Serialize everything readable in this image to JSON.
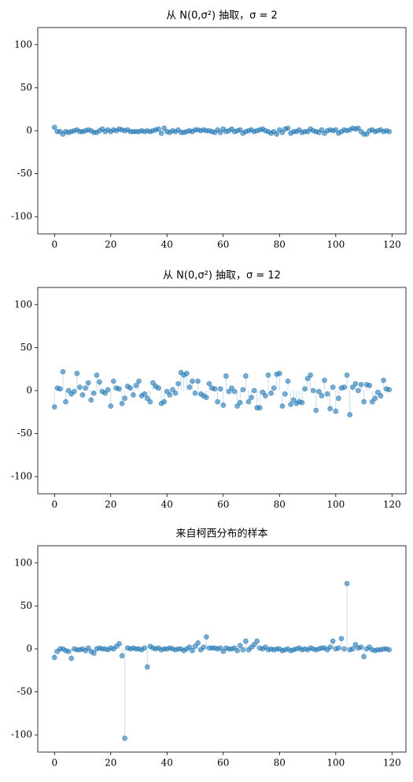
{
  "chart_data": [
    {
      "type": "scatter",
      "title": "从 N(0,σ²) 抽取，σ = 2",
      "color": "#1f77b4",
      "x": [
        0,
        1,
        2,
        3,
        4,
        5,
        6,
        7,
        8,
        9,
        10,
        11,
        12,
        13,
        14,
        15,
        16,
        17,
        18,
        19,
        20,
        21,
        22,
        23,
        24,
        25,
        26,
        27,
        28,
        29,
        30,
        31,
        32,
        33,
        34,
        35,
        36,
        37,
        38,
        39,
        40,
        41,
        42,
        43,
        44,
        45,
        46,
        47,
        48,
        49,
        50,
        51,
        52,
        53,
        54,
        55,
        56,
        57,
        58,
        59,
        60,
        61,
        62,
        63,
        64,
        65,
        66,
        67,
        68,
        69,
        70,
        71,
        72,
        73,
        74,
        75,
        76,
        77,
        78,
        79,
        80,
        81,
        82,
        83,
        84,
        85,
        86,
        87,
        88,
        89,
        90,
        91,
        92,
        93,
        94,
        95,
        96,
        97,
        98,
        99,
        100,
        101,
        102,
        103,
        104,
        105,
        106,
        107,
        108,
        109,
        110,
        111,
        112,
        113,
        114,
        115,
        116,
        117,
        118,
        119
      ],
      "values": [
        4,
        -1,
        -1,
        -4,
        -1,
        -2,
        -1,
        0,
        1,
        -1,
        -1,
        0,
        1,
        0,
        -2,
        -2,
        0,
        2,
        -1,
        1,
        -1,
        1,
        0,
        2,
        1,
        0,
        1,
        -1,
        -1,
        -1,
        -1,
        0,
        -1,
        0,
        -1,
        0,
        1,
        2,
        -3,
        3,
        -1,
        -2,
        0,
        -1,
        1,
        -2,
        -2,
        -1,
        0,
        -1,
        1,
        1,
        0,
        1,
        0,
        0,
        -1,
        -2,
        1,
        -2,
        2,
        -1,
        0,
        2,
        -1,
        0,
        1,
        -3,
        -1,
        0,
        1,
        -1,
        0,
        1,
        2,
        0,
        -1,
        -3,
        -1,
        -4,
        1,
        -2,
        2,
        3,
        -3,
        -1,
        -1,
        1,
        -2,
        -1,
        -1,
        2,
        0,
        -1,
        -2,
        1,
        -3,
        0,
        1,
        0,
        1,
        -3,
        -1,
        1,
        0,
        1,
        3,
        2,
        3,
        -1,
        -4,
        -4,
        0,
        1,
        -1,
        0,
        1,
        -1,
        0,
        -1
      ],
      "xlim": [
        -5.95,
        124.95
      ],
      "ylim": [
        -120,
        120
      ],
      "xticks": [
        0,
        20,
        40,
        60,
        80,
        100,
        120
      ],
      "yticks": [
        -100,
        -50,
        0,
        50,
        100
      ]
    },
    {
      "type": "scatter",
      "title": "从 N(0,σ²) 抽取，σ = 12",
      "color": "#1f77b4",
      "x": [
        0,
        1,
        2,
        3,
        4,
        5,
        6,
        7,
        8,
        9,
        10,
        11,
        12,
        13,
        14,
        15,
        16,
        17,
        18,
        19,
        20,
        21,
        22,
        23,
        24,
        25,
        26,
        27,
        28,
        29,
        30,
        31,
        32,
        33,
        34,
        35,
        36,
        37,
        38,
        39,
        40,
        41,
        42,
        43,
        44,
        45,
        46,
        47,
        48,
        49,
        50,
        51,
        52,
        53,
        54,
        55,
        56,
        57,
        58,
        59,
        60,
        61,
        62,
        63,
        64,
        65,
        66,
        67,
        68,
        69,
        70,
        71,
        72,
        73,
        74,
        75,
        76,
        77,
        78,
        79,
        80,
        81,
        82,
        83,
        84,
        85,
        86,
        87,
        88,
        89,
        90,
        91,
        92,
        93,
        94,
        95,
        96,
        97,
        98,
        99,
        100,
        101,
        102,
        103,
        104,
        105,
        106,
        107,
        108,
        109,
        110,
        111,
        112,
        113,
        114,
        115,
        116,
        117,
        118,
        119
      ],
      "values": [
        -19,
        3,
        2,
        22,
        -13,
        0,
        -4,
        -1,
        20,
        4,
        -5,
        3,
        9,
        -11,
        -3,
        18,
        10,
        -1,
        -3,
        1,
        -18,
        11,
        3,
        2,
        -15,
        -9,
        5,
        3,
        -5,
        6,
        11,
        -6,
        -4,
        -9,
        -13,
        9,
        5,
        3,
        -15,
        -13,
        -1,
        -5,
        1,
        -3,
        8,
        21,
        18,
        20,
        4,
        11,
        -3,
        11,
        -4,
        -6,
        -8,
        8,
        3,
        2,
        -13,
        2,
        -17,
        17,
        -1,
        3,
        -1,
        -18,
        -14,
        1,
        17,
        -13,
        -8,
        0,
        -20,
        -20,
        -2,
        -6,
        18,
        -3,
        3,
        19,
        20,
        -18,
        -4,
        11,
        -16,
        -11,
        -15,
        -13,
        -14,
        2,
        14,
        18,
        0,
        -23,
        -1,
        -6,
        12,
        -4,
        -21,
        4,
        -24,
        -9,
        3,
        4,
        18,
        -28,
        4,
        8,
        0,
        7,
        -13,
        7,
        6,
        -13,
        -9,
        -2,
        -6,
        12,
        2,
        1
      ],
      "xlim": [
        -5.95,
        124.95
      ],
      "ylim": [
        -120,
        120
      ],
      "xticks": [
        0,
        20,
        40,
        60,
        80,
        100,
        120
      ],
      "yticks": [
        -100,
        -50,
        0,
        50,
        100
      ]
    },
    {
      "type": "scatter",
      "title": "来自柯西分布的样本",
      "color": "#1f77b4",
      "x": [
        0,
        1,
        2,
        3,
        4,
        5,
        6,
        7,
        8,
        9,
        10,
        11,
        12,
        13,
        14,
        15,
        16,
        17,
        18,
        19,
        20,
        21,
        22,
        23,
        24,
        25,
        26,
        27,
        28,
        29,
        30,
        31,
        32,
        33,
        34,
        35,
        36,
        37,
        38,
        39,
        40,
        41,
        42,
        43,
        44,
        45,
        46,
        47,
        48,
        49,
        50,
        51,
        52,
        53,
        54,
        55,
        56,
        57,
        58,
        59,
        60,
        61,
        62,
        63,
        64,
        65,
        66,
        67,
        68,
        69,
        70,
        71,
        72,
        73,
        74,
        75,
        76,
        77,
        78,
        79,
        80,
        81,
        82,
        83,
        84,
        85,
        86,
        87,
        88,
        89,
        90,
        91,
        92,
        93,
        94,
        95,
        96,
        97,
        98,
        99,
        100,
        101,
        102,
        103,
        104,
        105,
        106,
        107,
        108,
        109,
        110,
        111,
        112,
        113,
        114,
        115,
        116,
        117,
        118,
        119
      ],
      "values": [
        -10,
        -3,
        0,
        0,
        -2,
        -3,
        -11,
        0,
        -1,
        -1,
        0,
        -2,
        1,
        -3,
        -5,
        0,
        1,
        0,
        0,
        -1,
        1,
        0,
        3,
        6,
        -8,
        -104,
        1,
        0,
        1,
        0,
        0,
        -1,
        1,
        -21,
        3,
        1,
        0,
        1,
        -1,
        0,
        0,
        1,
        0,
        -1,
        0,
        0,
        -2,
        0,
        2,
        -2,
        3,
        7,
        -1,
        2,
        14,
        1,
        1,
        1,
        0,
        1,
        -3,
        1,
        0,
        0,
        1,
        -2,
        4,
        -1,
        9,
        -1,
        2,
        5,
        9,
        1,
        0,
        2,
        -1,
        0,
        -1,
        0,
        0,
        -2,
        -1,
        0,
        -2,
        -1,
        0,
        1,
        -1,
        0,
        -1,
        1,
        0,
        -1,
        0,
        1,
        1,
        -1,
        2,
        9,
        0,
        1,
        12,
        0,
        76,
        -1,
        0,
        5,
        1,
        2,
        -9,
        0,
        2,
        -1,
        -2,
        -1,
        -1,
        0,
        0,
        -1
      ],
      "xlim": [
        -5.95,
        124.95
      ],
      "ylim": [
        -120,
        120
      ],
      "xticks": [
        0,
        20,
        40,
        60,
        80,
        100,
        120
      ],
      "yticks": [
        -100,
        -50,
        0,
        50,
        100
      ]
    }
  ]
}
